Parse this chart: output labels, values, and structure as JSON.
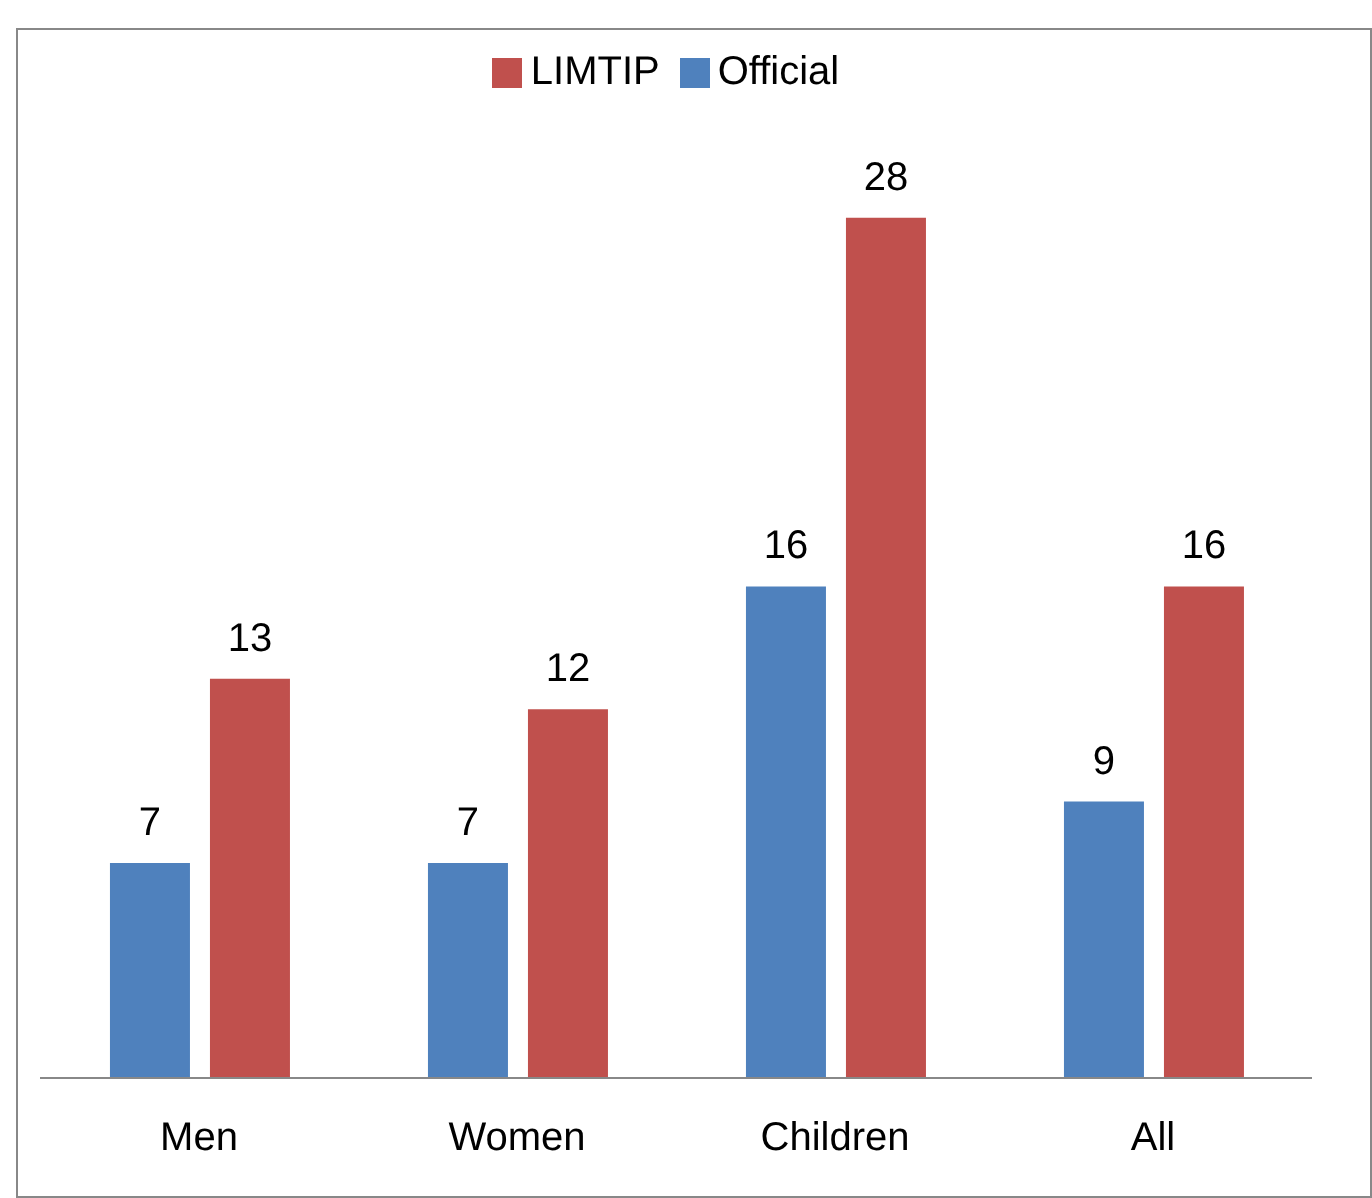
{
  "chart_data": {
    "type": "bar",
    "categories": [
      "Men",
      "Women",
      "Children",
      "All"
    ],
    "series": [
      {
        "name": "Official",
        "color": "#4f81bd",
        "values": [
          7,
          7,
          16,
          9
        ]
      },
      {
        "name": "LIMTIP",
        "color": "#c0504d",
        "values": [
          13,
          12,
          28,
          16
        ]
      }
    ],
    "data_labels": true,
    "legend": "top",
    "grid": false
  }
}
